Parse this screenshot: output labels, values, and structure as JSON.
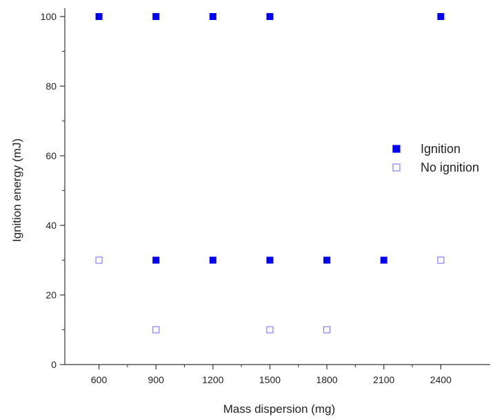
{
  "chart_data": {
    "type": "scatter",
    "title": "",
    "xlabel": "Mass dispersion (mg)",
    "ylabel": "Ignition energy (mJ)",
    "xlim": [
      420,
      2660
    ],
    "ylim": [
      0,
      100
    ],
    "x_ticks": [
      600,
      900,
      1200,
      1500,
      1800,
      2100,
      2400
    ],
    "y_ticks": [
      0,
      20,
      40,
      60,
      80,
      100
    ],
    "grid": false,
    "legend_position": "right",
    "series": [
      {
        "name": "Ignition",
        "marker": "filled-square",
        "color": "#0000ee",
        "points": [
          {
            "x": 600,
            "y": 100
          },
          {
            "x": 900,
            "y": 100
          },
          {
            "x": 1200,
            "y": 100
          },
          {
            "x": 1500,
            "y": 100
          },
          {
            "x": 2400,
            "y": 100
          },
          {
            "x": 900,
            "y": 30
          },
          {
            "x": 1200,
            "y": 30
          },
          {
            "x": 1500,
            "y": 30
          },
          {
            "x": 1800,
            "y": 30
          },
          {
            "x": 2100,
            "y": 30
          }
        ]
      },
      {
        "name": "No ignition",
        "marker": "open-square",
        "color": "#8080ff",
        "points": [
          {
            "x": 600,
            "y": 30
          },
          {
            "x": 2400,
            "y": 30
          },
          {
            "x": 900,
            "y": 10
          },
          {
            "x": 1500,
            "y": 10
          },
          {
            "x": 1800,
            "y": 10
          }
        ]
      }
    ]
  }
}
